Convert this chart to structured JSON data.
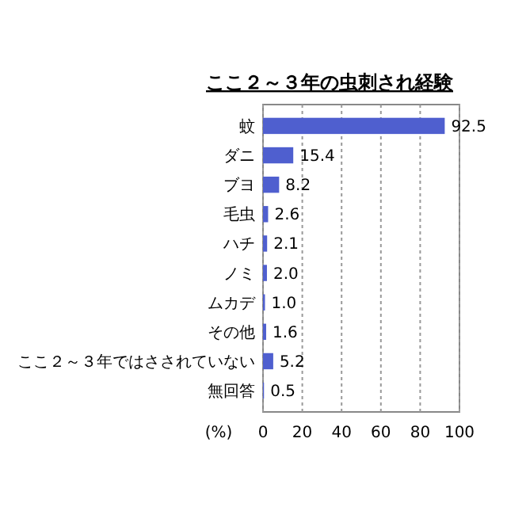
{
  "chart_data": {
    "type": "bar",
    "orientation": "horizontal",
    "title": "ここ２～３年の虫刺され経験",
    "xlabel": "(%)",
    "categories": [
      "蚊",
      "ダニ",
      "ブヨ",
      "毛虫",
      "ハチ",
      "ノミ",
      "ムカデ",
      "その他",
      "ここ２～３年ではさされていない",
      "無回答"
    ],
    "values": [
      92.5,
      15.4,
      8.2,
      2.6,
      2.1,
      2.0,
      1.0,
      1.6,
      5.2,
      0.5
    ],
    "value_labels": [
      "92.5",
      "15.4",
      "8.2",
      "2.6",
      "2.1",
      "2.0",
      "1.0",
      "1.6",
      "5.2",
      "0.5"
    ],
    "color": "#4f5fcf",
    "xlim": [
      0,
      100
    ],
    "xticks": [
      0,
      20,
      40,
      60,
      80,
      100
    ],
    "grid": "x"
  }
}
